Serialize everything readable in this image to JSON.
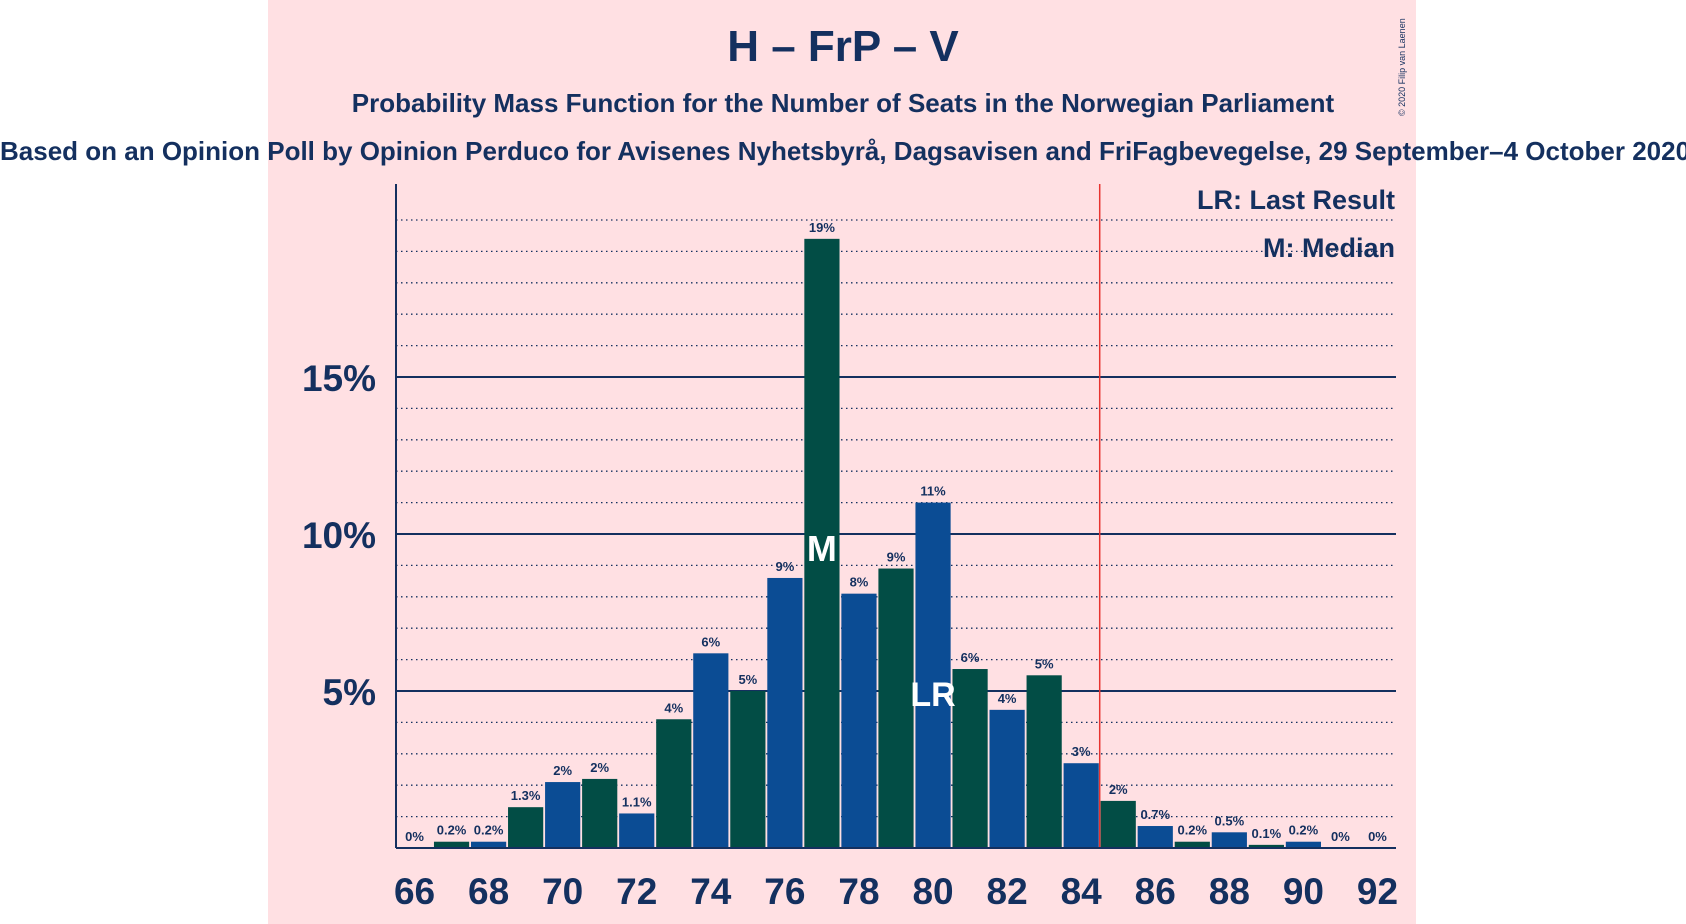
{
  "title": "H – FrP – V",
  "subtitle": "Probability Mass Function for the Number of Seats in the Norwegian Parliament",
  "source_line": "Based on an Opinion Poll by Opinion Perduco for Avisenes Nyhetsbyrå, Dagsavisen and FriFagbevegelse, 29 September–4 October 2020",
  "copyright": "© 2020 Filip van Laenen",
  "legend": {
    "last_result": "LR: Last Result",
    "median": "M: Median"
  },
  "colors": {
    "background": "#FFE0E3",
    "blue": "#0B4C94",
    "green": "#024D45",
    "text": "#14305F",
    "majority_line": "#E8332F"
  },
  "chart_data": {
    "type": "bar",
    "title": "H – FrP – V",
    "xlabel": "",
    "ylabel": "",
    "x": [
      66,
      67,
      68,
      69,
      70,
      71,
      72,
      73,
      74,
      75,
      76,
      77,
      78,
      79,
      80,
      81,
      82,
      83,
      84,
      85,
      86,
      87,
      88,
      89,
      90,
      91,
      92
    ],
    "values": [
      0.0,
      0.2,
      0.2,
      1.3,
      2.1,
      2.2,
      1.1,
      4.1,
      6.2,
      5.0,
      8.6,
      19.4,
      8.1,
      8.9,
      11.0,
      5.7,
      4.4,
      5.5,
      2.7,
      1.5,
      0.7,
      0.2,
      0.5,
      0.1,
      0.2,
      0.0,
      0.0
    ],
    "labels": [
      "0%",
      "0.2%",
      "0.2%",
      "1.3%",
      "2%",
      "2%",
      "1.1%",
      "4%",
      "6%",
      "5%",
      "9%",
      "19%",
      "8%",
      "9%",
      "11%",
      "6%",
      "4%",
      "5%",
      "3%",
      "2%",
      "0.7%",
      "0.2%",
      "0.5%",
      "0.1%",
      "0.2%",
      "0%",
      "0%"
    ],
    "x_tick_labels": [
      "66",
      "68",
      "70",
      "72",
      "74",
      "76",
      "78",
      "80",
      "82",
      "84",
      "86",
      "88",
      "90",
      "92"
    ],
    "y_ticks": [
      {
        "value": 5,
        "label": "5%"
      },
      {
        "value": 10,
        "label": "10%"
      },
      {
        "value": 15,
        "label": "15%"
      }
    ],
    "ylim": [
      0,
      21
    ],
    "median": 77,
    "median_marker": "M",
    "last_result": 80,
    "last_result_marker": "LR",
    "majority_threshold": 85,
    "grid": "dotted minor, solid major"
  }
}
